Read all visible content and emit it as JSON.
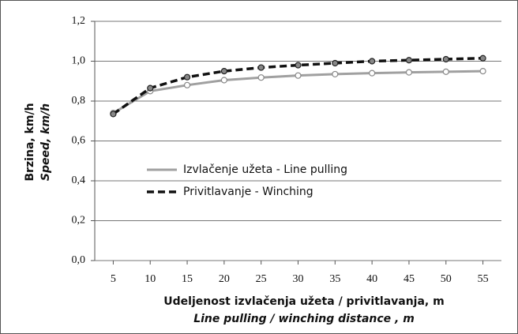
{
  "chart_data": {
    "type": "line",
    "xlabel": "Udeljenost izvlačenja užeta / privitlavanja, m",
    "xlabel2": "Line pulling / winching distance , m",
    "ylabel": "Brzina, km/h",
    "ylabel2": "Speed, km/h",
    "x": [
      5,
      10,
      15,
      20,
      25,
      30,
      35,
      40,
      45,
      50,
      55
    ],
    "xlim": [
      2.5,
      57.5
    ],
    "xticks": [
      5,
      10,
      15,
      20,
      25,
      30,
      35,
      40,
      45,
      50,
      55
    ],
    "ylim": [
      0,
      1.2
    ],
    "yticks": [
      {
        "value": 0,
        "label": "0,0"
      },
      {
        "value": 0.2,
        "label": "0,2"
      },
      {
        "value": 0.4,
        "label": "0,4"
      },
      {
        "value": 0.6,
        "label": "0,6"
      },
      {
        "value": 0.8,
        "label": "0,8"
      },
      {
        "value": 1.0,
        "label": "1,0"
      },
      {
        "value": 1.2,
        "label": "1,2"
      }
    ],
    "grid": true,
    "series": [
      {
        "name": "Izvlačenje užeta - Line pulling",
        "color": "#a0a0a0",
        "dash": false,
        "values": [
          0.74,
          0.85,
          0.88,
          0.905,
          0.918,
          0.928,
          0.935,
          0.94,
          0.944,
          0.947,
          0.95
        ]
      },
      {
        "name": "Privitlavanje - Winching",
        "color": "#111111",
        "dash": true,
        "values": [
          0.735,
          0.865,
          0.92,
          0.95,
          0.968,
          0.98,
          0.99,
          1.0,
          1.005,
          1.01,
          1.015
        ]
      }
    ]
  }
}
